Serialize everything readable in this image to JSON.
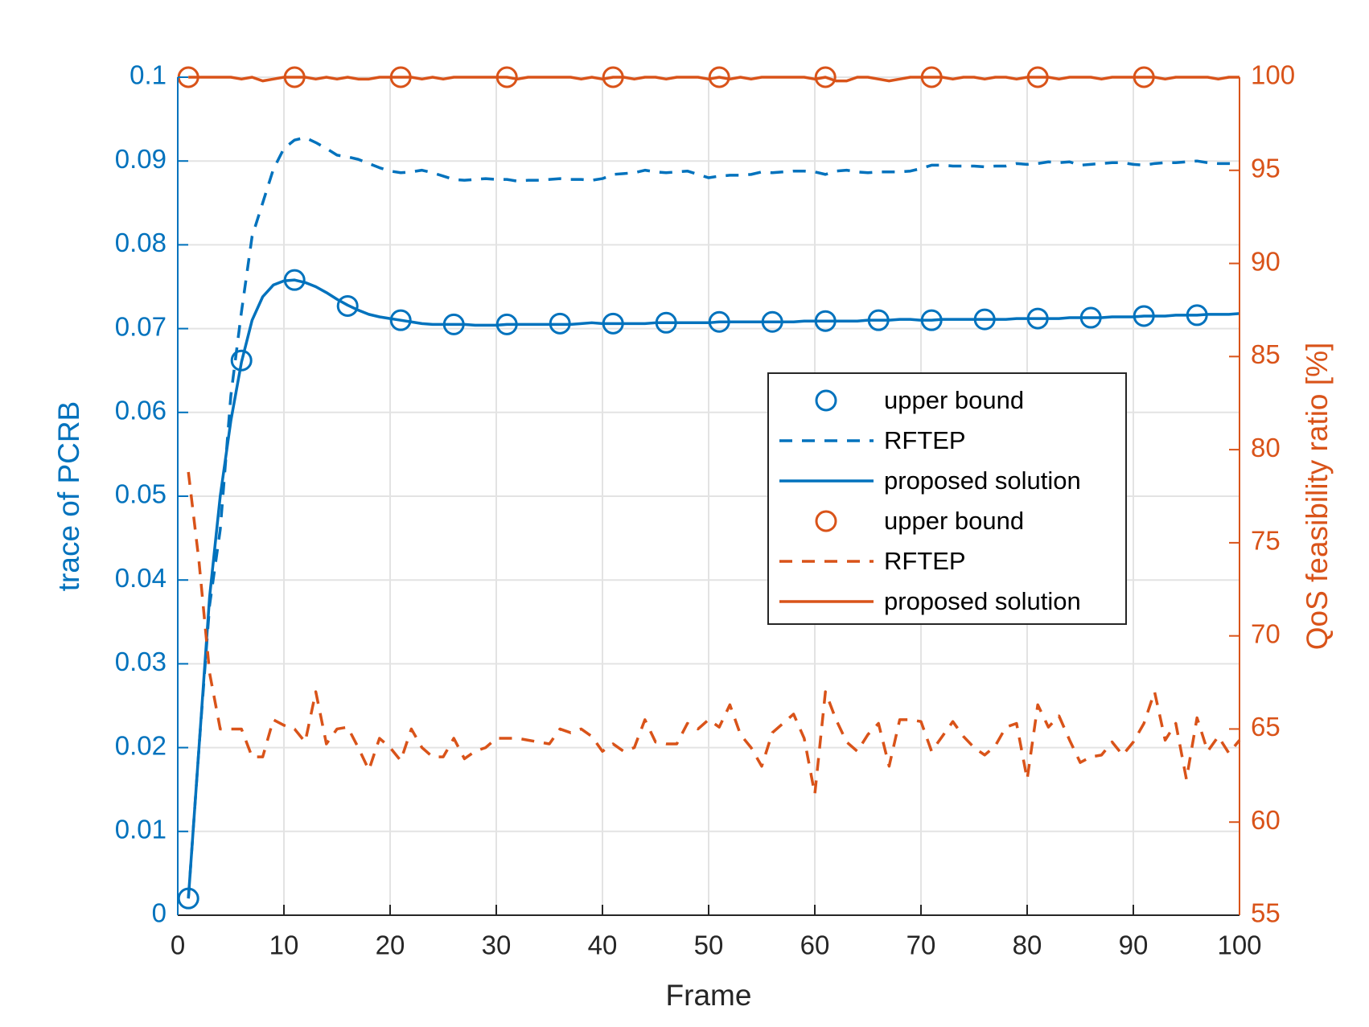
{
  "chart_data": {
    "type": "line",
    "xlabel": "Frame",
    "ylabel": "trace of PCRB",
    "y2label": "QoS feasibility ratio [%]",
    "xlim": [
      0,
      100
    ],
    "xticks": [
      0,
      10,
      20,
      30,
      40,
      50,
      60,
      70,
      80,
      90,
      100
    ],
    "ylim": [
      0,
      0.1
    ],
    "yticks": [
      0,
      0.01,
      0.02,
      0.03,
      0.04,
      0.05,
      0.06,
      0.07,
      0.08,
      0.09,
      0.1
    ],
    "y2lim": [
      55,
      100
    ],
    "y2ticks": [
      55,
      60,
      65,
      70,
      75,
      80,
      85,
      90,
      95,
      100
    ],
    "grid": true,
    "legend": "east",
    "left_axis_color": "#0072bd",
    "right_axis_color": "#d95319",
    "series": [
      {
        "name": "upper bound",
        "color": "#0072bd",
        "style": "markers",
        "axis": "y",
        "x": [
          1,
          6,
          11,
          16,
          21,
          26,
          31,
          36,
          41,
          46,
          51,
          56,
          61,
          66,
          71,
          76,
          81,
          86,
          91,
          96
        ],
        "values": [
          0.002,
          0.0662,
          0.0758,
          0.0727,
          0.071,
          0.0705,
          0.0705,
          0.0706,
          0.0706,
          0.0707,
          0.0708,
          0.0708,
          0.0709,
          0.071,
          0.071,
          0.0711,
          0.0712,
          0.0713,
          0.0715,
          0.0716
        ]
      },
      {
        "name": "RFTEP",
        "color": "#0072bd",
        "style": "dashed",
        "axis": "y",
        "x": [
          1,
          2,
          3,
          4,
          5,
          6,
          7,
          8,
          9,
          10,
          11,
          12,
          13,
          14,
          15,
          16,
          17,
          18,
          19,
          20,
          21,
          22,
          23,
          24,
          25,
          26,
          27,
          28,
          29,
          30,
          31,
          32,
          33,
          34,
          35,
          36,
          37,
          38,
          39,
          40,
          41,
          42,
          43,
          44,
          45,
          46,
          47,
          48,
          49,
          50,
          51,
          52,
          53,
          54,
          55,
          56,
          57,
          58,
          59,
          60,
          61,
          62,
          63,
          64,
          65,
          66,
          67,
          68,
          69,
          70,
          71,
          72,
          73,
          74,
          75,
          76,
          77,
          78,
          79,
          80,
          81,
          82,
          83,
          84,
          85,
          86,
          87,
          88,
          89,
          90,
          91,
          92,
          93,
          94,
          95,
          96,
          97,
          98,
          99,
          100
        ],
        "values": [
          0.002,
          0.02,
          0.037,
          0.046,
          0.062,
          0.072,
          0.081,
          0.085,
          0.089,
          0.0915,
          0.0925,
          0.0928,
          0.0922,
          0.0915,
          0.0907,
          0.0905,
          0.0902,
          0.0897,
          0.0892,
          0.0888,
          0.0886,
          0.0887,
          0.0889,
          0.0886,
          0.0882,
          0.0878,
          0.0877,
          0.0878,
          0.0879,
          0.0878,
          0.0878,
          0.0876,
          0.0877,
          0.0877,
          0.0878,
          0.0879,
          0.0878,
          0.0878,
          0.0877,
          0.0879,
          0.0884,
          0.0885,
          0.0886,
          0.0889,
          0.0887,
          0.0886,
          0.0887,
          0.0888,
          0.0884,
          0.088,
          0.0882,
          0.0883,
          0.0883,
          0.0884,
          0.0887,
          0.0886,
          0.0887,
          0.0888,
          0.0888,
          0.0887,
          0.0884,
          0.0888,
          0.0889,
          0.0887,
          0.0886,
          0.0887,
          0.0887,
          0.0887,
          0.0888,
          0.0891,
          0.0895,
          0.0895,
          0.0894,
          0.0894,
          0.0894,
          0.0893,
          0.0894,
          0.0894,
          0.0897,
          0.0896,
          0.0897,
          0.0899,
          0.0898,
          0.0899,
          0.0895,
          0.0896,
          0.0897,
          0.0898,
          0.0898,
          0.0896,
          0.0895,
          0.0897,
          0.0898,
          0.0898,
          0.0899,
          0.09,
          0.0898,
          0.0897,
          0.0897,
          0.0897
        ]
      },
      {
        "name": "proposed solution",
        "color": "#0072bd",
        "style": "solid",
        "axis": "y",
        "x": [
          1,
          2,
          3,
          4,
          5,
          6,
          7,
          8,
          9,
          10,
          11,
          12,
          13,
          14,
          15,
          16,
          17,
          18,
          19,
          20,
          21,
          22,
          23,
          24,
          25,
          26,
          27,
          28,
          29,
          30,
          31,
          32,
          33,
          34,
          35,
          36,
          37,
          38,
          39,
          40,
          41,
          42,
          43,
          44,
          45,
          46,
          47,
          48,
          49,
          50,
          51,
          52,
          53,
          54,
          55,
          56,
          57,
          58,
          59,
          60,
          61,
          62,
          63,
          64,
          65,
          66,
          67,
          68,
          69,
          70,
          71,
          72,
          73,
          74,
          75,
          76,
          77,
          78,
          79,
          80,
          81,
          82,
          83,
          84,
          85,
          86,
          87,
          88,
          89,
          90,
          91,
          92,
          93,
          94,
          95,
          96,
          97,
          98,
          99,
          100
        ],
        "values": [
          0.002,
          0.02,
          0.038,
          0.05,
          0.059,
          0.066,
          0.071,
          0.0738,
          0.0752,
          0.0757,
          0.0758,
          0.0755,
          0.075,
          0.0743,
          0.0735,
          0.0728,
          0.0722,
          0.0717,
          0.0714,
          0.0712,
          0.071,
          0.0708,
          0.0706,
          0.0705,
          0.0705,
          0.0705,
          0.0705,
          0.0704,
          0.0704,
          0.0704,
          0.0705,
          0.0705,
          0.0705,
          0.0705,
          0.0705,
          0.0705,
          0.0705,
          0.0706,
          0.0707,
          0.0706,
          0.0706,
          0.0706,
          0.0706,
          0.0706,
          0.0707,
          0.0707,
          0.0707,
          0.0707,
          0.0707,
          0.0707,
          0.0708,
          0.0708,
          0.0708,
          0.0708,
          0.0708,
          0.0708,
          0.0708,
          0.0708,
          0.0709,
          0.0709,
          0.0709,
          0.0709,
          0.0709,
          0.0709,
          0.071,
          0.071,
          0.071,
          0.0711,
          0.0711,
          0.071,
          0.071,
          0.0711,
          0.0711,
          0.0711,
          0.0711,
          0.0711,
          0.0711,
          0.0711,
          0.0712,
          0.0712,
          0.0712,
          0.0712,
          0.0712,
          0.0713,
          0.0713,
          0.0713,
          0.0713,
          0.0714,
          0.0714,
          0.0714,
          0.0715,
          0.0715,
          0.0715,
          0.0716,
          0.0716,
          0.0716,
          0.0717,
          0.0717,
          0.0717,
          0.0718
        ]
      },
      {
        "name": "upper bound",
        "color": "#d95319",
        "style": "markers",
        "axis": "y2",
        "x": [
          1,
          11,
          21,
          31,
          41,
          51,
          61,
          71,
          81,
          91
        ],
        "values": [
          100,
          100,
          100,
          100,
          100,
          100,
          100,
          100,
          100,
          100
        ]
      },
      {
        "name": "RFTEP",
        "color": "#d95319",
        "style": "dashed",
        "axis": "y2",
        "x": [
          1,
          2,
          3,
          4,
          5,
          6,
          7,
          8,
          9,
          10,
          11,
          12,
          13,
          14,
          15,
          16,
          17,
          18,
          19,
          20,
          21,
          22,
          23,
          24,
          25,
          26,
          27,
          28,
          29,
          30,
          31,
          32,
          33,
          34,
          35,
          36,
          37,
          38,
          39,
          40,
          41,
          42,
          43,
          44,
          45,
          46,
          47,
          48,
          49,
          50,
          51,
          52,
          53,
          54,
          55,
          56,
          57,
          58,
          59,
          60,
          61,
          62,
          63,
          64,
          65,
          66,
          67,
          68,
          69,
          70,
          71,
          72,
          73,
          74,
          75,
          76,
          77,
          78,
          79,
          80,
          81,
          82,
          83,
          84,
          85,
          86,
          87,
          88,
          89,
          90,
          91,
          92,
          93,
          94,
          95,
          96,
          97,
          98,
          99,
          100
        ],
        "values": [
          78.8,
          74,
          68,
          65,
          65,
          65,
          63.5,
          63.5,
          65.5,
          65.2,
          65,
          64.3,
          67,
          64.2,
          65,
          65.1,
          64,
          62.8,
          64.5,
          64,
          63.3,
          65,
          64,
          63.5,
          63.5,
          64.5,
          63.4,
          63.8,
          64,
          64.5,
          64.5,
          64.5,
          64.4,
          64.3,
          64.2,
          65,
          64.8,
          65,
          64.6,
          63.8,
          64.2,
          63.8,
          64,
          65.5,
          64.3,
          64.2,
          64.2,
          65.3,
          65,
          65.5,
          65.1,
          66.3,
          64.7,
          64,
          63,
          64.8,
          65.3,
          65.8,
          64.5,
          61.5,
          67,
          65.5,
          64.3,
          63.8,
          64.7,
          65.3,
          63,
          65.5,
          65.5,
          65.4,
          63.8,
          64.6,
          65.4,
          64.6,
          64,
          63.6,
          64.1,
          65.1,
          65.3,
          62.3,
          66.3,
          65.1,
          65.7,
          64.4,
          63.2,
          63.5,
          63.6,
          64.3,
          63.6,
          64.3,
          65.3,
          67,
          64.4,
          65.3,
          62.3,
          65.6,
          63.8,
          64.6,
          63.7,
          64.4
        ]
      },
      {
        "name": "proposed solution",
        "color": "#d95319",
        "style": "solid",
        "axis": "y2",
        "x": [
          1,
          2,
          3,
          4,
          5,
          6,
          7,
          8,
          9,
          10,
          11,
          12,
          13,
          14,
          15,
          16,
          17,
          18,
          19,
          20,
          21,
          22,
          23,
          24,
          25,
          26,
          27,
          28,
          29,
          30,
          31,
          32,
          33,
          34,
          35,
          36,
          37,
          38,
          39,
          40,
          41,
          42,
          43,
          44,
          45,
          46,
          47,
          48,
          49,
          50,
          51,
          52,
          53,
          54,
          55,
          56,
          57,
          58,
          59,
          60,
          61,
          62,
          63,
          64,
          65,
          66,
          67,
          68,
          69,
          70,
          71,
          72,
          73,
          74,
          75,
          76,
          77,
          78,
          79,
          80,
          81,
          82,
          83,
          84,
          85,
          86,
          87,
          88,
          89,
          90,
          91,
          92,
          93,
          94,
          95,
          96,
          97,
          98,
          99,
          100
        ],
        "values": [
          100,
          100,
          100,
          100,
          100,
          99.9,
          100,
          99.8,
          99.9,
          100,
          100,
          100,
          99.9,
          100,
          99.9,
          100,
          99.9,
          99.9,
          100,
          100,
          100,
          100,
          99.9,
          100,
          99.9,
          100,
          100,
          100,
          100,
          100,
          100,
          99.9,
          100,
          100,
          100,
          100,
          100,
          99.9,
          100,
          99.9,
          100,
          100,
          99.9,
          100,
          100,
          99.9,
          100,
          100,
          100,
          99.9,
          100,
          99.9,
          100,
          99.9,
          100,
          100,
          100,
          100,
          100,
          99.9,
          100,
          99.8,
          99.8,
          100,
          100,
          99.9,
          99.8,
          99.9,
          100,
          100,
          100,
          100,
          99.9,
          100,
          100,
          99.9,
          100,
          100,
          99.9,
          100,
          100,
          100,
          99.9,
          100,
          100,
          100,
          99.9,
          100,
          100,
          100,
          100,
          100,
          99.9,
          100,
          100,
          100,
          100,
          99.9,
          100,
          100
        ]
      }
    ]
  }
}
